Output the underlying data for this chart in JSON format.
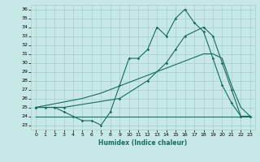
{
  "xlabel": "Humidex (Indice chaleur)",
  "ylabel": "",
  "background_color": "#c6e8e6",
  "grid_color": "#a8ceca",
  "line_color": "#1a6b60",
  "xlim": [
    -0.5,
    23.5
  ],
  "ylim": [
    22.5,
    36.5
  ],
  "yticks": [
    23,
    24,
    25,
    26,
    27,
    28,
    29,
    30,
    31,
    32,
    33,
    34,
    35,
    36
  ],
  "xticks": [
    0,
    1,
    2,
    3,
    4,
    5,
    6,
    7,
    8,
    9,
    10,
    11,
    12,
    13,
    14,
    15,
    16,
    17,
    18,
    19,
    20,
    21,
    22,
    23
  ],
  "line1_x": [
    0,
    1,
    2,
    3,
    4,
    5,
    6,
    7,
    8,
    9,
    10,
    11,
    12,
    13,
    14,
    15,
    16,
    17,
    18,
    19,
    20,
    21,
    22,
    23
  ],
  "line1_y": [
    25,
    25,
    25,
    24.5,
    24,
    23.5,
    23.5,
    23,
    24.5,
    27.5,
    30.5,
    30.5,
    31.5,
    34,
    33,
    35,
    36,
    34.5,
    33.5,
    30.5,
    27.5,
    25.5,
    24,
    24
  ],
  "line2_x": [
    0,
    1,
    2,
    3,
    4,
    5,
    6,
    7,
    8,
    9,
    10,
    11,
    12,
    13,
    14,
    15,
    16,
    17,
    18,
    19,
    20,
    21,
    22,
    23
  ],
  "line2_y": [
    24,
    24,
    24,
    24,
    24,
    24,
    24,
    24,
    24,
    24,
    24,
    24,
    24,
    24,
    24,
    24,
    24,
    24,
    24,
    24,
    24,
    24,
    24,
    24
  ],
  "line3_x": [
    0,
    1,
    2,
    3,
    4,
    5,
    6,
    7,
    8,
    9,
    10,
    11,
    12,
    13,
    14,
    15,
    16,
    17,
    18,
    19,
    20,
    21,
    22,
    23
  ],
  "line3_y": [
    25,
    25.2,
    25.4,
    25.6,
    25.8,
    26.0,
    26.3,
    26.6,
    27.0,
    27.4,
    27.8,
    28.2,
    28.6,
    29.0,
    29.4,
    29.8,
    30.2,
    30.6,
    31.0,
    31.0,
    30.5,
    27.5,
    25.0,
    24.0
  ],
  "line4_x": [
    0,
    3,
    9,
    12,
    14,
    15,
    16,
    18,
    19,
    20,
    21,
    22,
    23
  ],
  "line4_y": [
    25,
    25,
    26,
    28,
    30,
    31.5,
    33,
    34,
    33,
    30,
    27,
    24,
    24
  ]
}
